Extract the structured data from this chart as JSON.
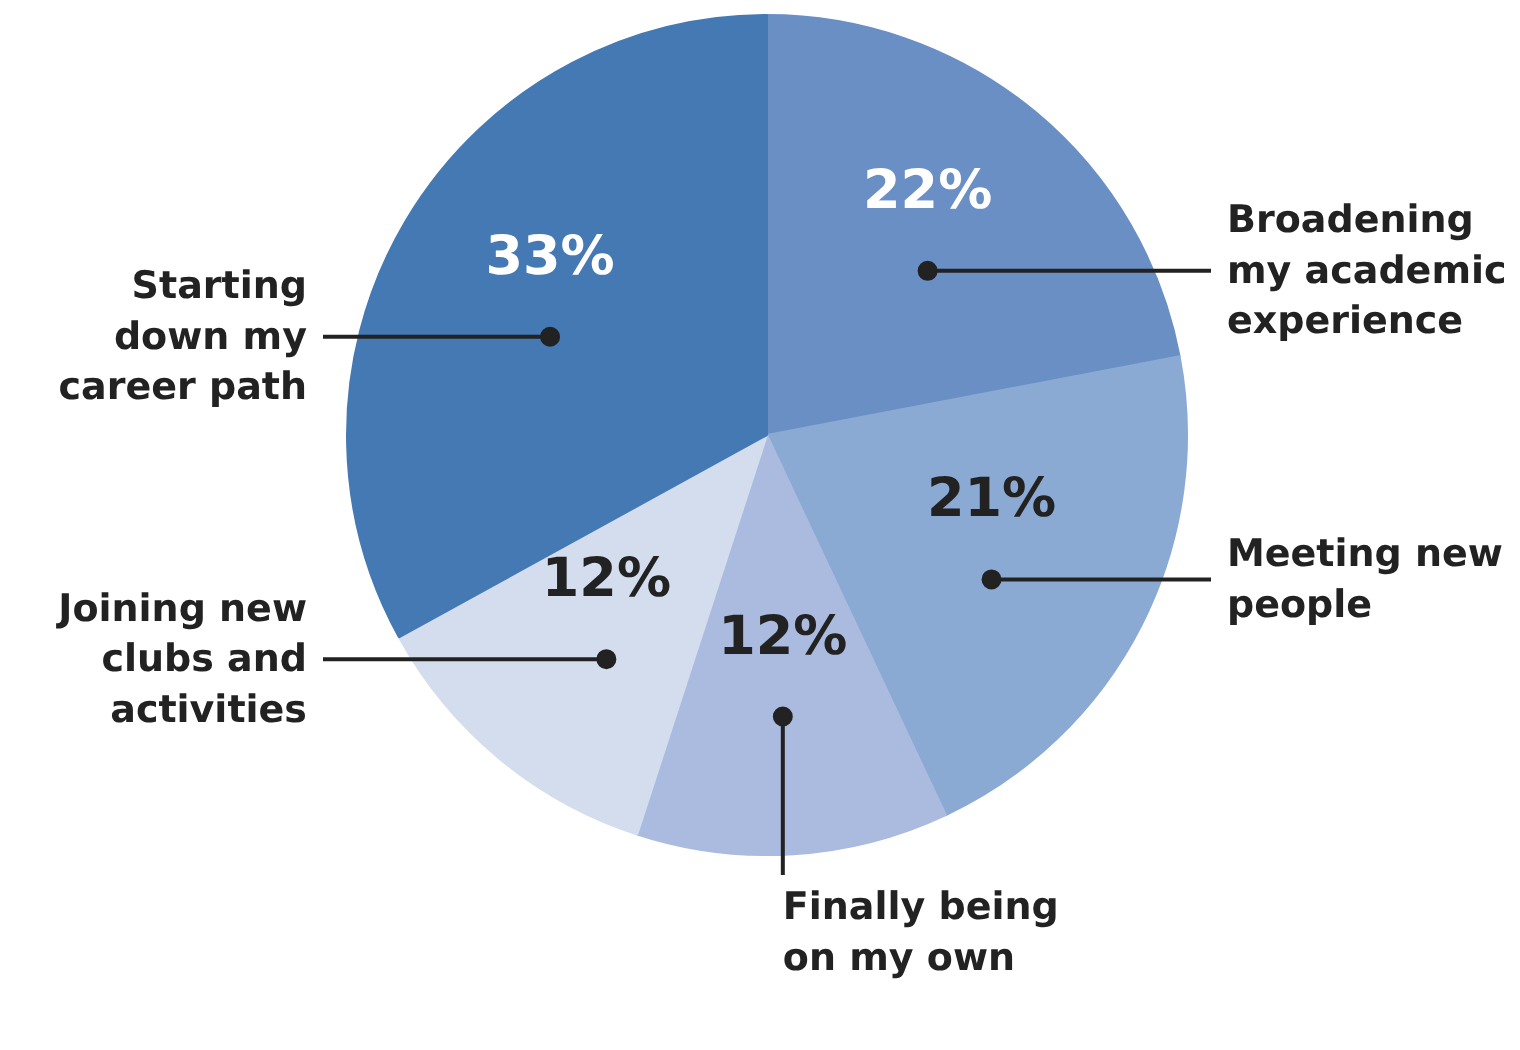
{
  "chart_data": {
    "type": "pie",
    "categories": [
      "Broadening my academic experience",
      "Meeting new people",
      "Finally being on my own",
      "Joining new clubs and activities",
      "Starting down my career path"
    ],
    "values": [
      22,
      21,
      12,
      12,
      33
    ],
    "value_labels": [
      "22%",
      "21%",
      "12%",
      "12%",
      "33%"
    ],
    "colors": [
      "#6a8fc4",
      "#8aaad4",
      "#aabbdf",
      "#d3ddee",
      "#4479b4"
    ]
  }
}
